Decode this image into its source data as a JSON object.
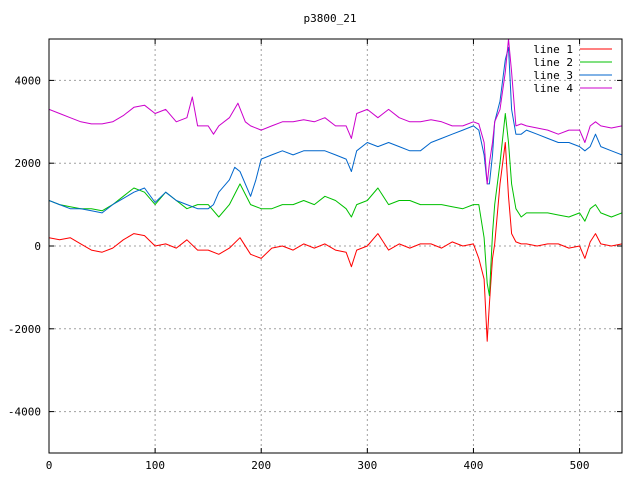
{
  "chart_data": {
    "type": "line",
    "title": "p3800_21",
    "xlabel": "",
    "ylabel": "",
    "xlim": [
      0,
      540
    ],
    "ylim": [
      -5000,
      5000
    ],
    "xticks": [
      0,
      100,
      200,
      300,
      400,
      500
    ],
    "yticks": [
      -4000,
      -2000,
      0,
      2000,
      4000
    ],
    "grid": true,
    "legend_position": "top-right",
    "series": [
      {
        "name": "line 1",
        "color": "#ff0000",
        "x": [
          0,
          10,
          20,
          30,
          40,
          50,
          60,
          70,
          80,
          90,
          100,
          110,
          120,
          130,
          140,
          150,
          160,
          170,
          180,
          190,
          200,
          210,
          220,
          230,
          240,
          250,
          260,
          270,
          280,
          285,
          290,
          300,
          310,
          320,
          330,
          340,
          350,
          360,
          370,
          380,
          390,
          400,
          405,
          410,
          413,
          415,
          418,
          420,
          425,
          430,
          433,
          436,
          440,
          445,
          450,
          460,
          470,
          480,
          490,
          500,
          505,
          510,
          515,
          520,
          530,
          540
        ],
        "y": [
          200,
          150,
          200,
          50,
          -100,
          -150,
          -50,
          150,
          300,
          250,
          0,
          50,
          -50,
          150,
          -100,
          -100,
          -200,
          -50,
          200,
          -200,
          -300,
          -50,
          0,
          -100,
          50,
          -50,
          50,
          -100,
          -150,
          -500,
          -100,
          0,
          300,
          -100,
          50,
          -50,
          50,
          50,
          -50,
          100,
          0,
          50,
          -300,
          -800,
          -2300,
          -1400,
          -300,
          50,
          1500,
          2500,
          1200,
          300,
          100,
          50,
          50,
          0,
          50,
          50,
          -50,
          0,
          -300,
          100,
          300,
          50,
          0,
          50
        ]
      },
      {
        "name": "line 2",
        "color": "#00c000",
        "x": [
          0,
          10,
          20,
          30,
          40,
          50,
          60,
          70,
          80,
          90,
          100,
          110,
          120,
          130,
          140,
          150,
          160,
          170,
          180,
          190,
          200,
          210,
          220,
          230,
          240,
          250,
          260,
          270,
          280,
          285,
          290,
          300,
          310,
          320,
          330,
          340,
          350,
          360,
          370,
          380,
          390,
          400,
          405,
          410,
          413,
          415,
          418,
          420,
          425,
          430,
          433,
          436,
          440,
          445,
          450,
          460,
          470,
          480,
          490,
          500,
          505,
          510,
          515,
          520,
          530,
          540
        ],
        "y": [
          1100,
          1000,
          950,
          900,
          900,
          850,
          1000,
          1200,
          1400,
          1300,
          1000,
          1300,
          1100,
          900,
          1000,
          1000,
          700,
          1000,
          1500,
          1000,
          900,
          900,
          1000,
          1000,
          1100,
          1000,
          1200,
          1100,
          900,
          700,
          1000,
          1100,
          1400,
          1000,
          1100,
          1100,
          1000,
          1000,
          1000,
          950,
          900,
          1000,
          1000,
          200,
          -900,
          -1200,
          300,
          1000,
          2000,
          3200,
          2500,
          1500,
          900,
          700,
          800,
          800,
          800,
          750,
          700,
          800,
          600,
          900,
          1000,
          800,
          700,
          800
        ]
      },
      {
        "name": "line 3",
        "color": "#0066cc",
        "x": [
          0,
          10,
          20,
          30,
          40,
          50,
          60,
          70,
          80,
          90,
          100,
          110,
          120,
          130,
          140,
          150,
          155,
          160,
          170,
          175,
          180,
          190,
          195,
          200,
          210,
          220,
          230,
          240,
          250,
          260,
          270,
          280,
          285,
          290,
          300,
          310,
          320,
          330,
          340,
          350,
          360,
          370,
          380,
          390,
          400,
          405,
          410,
          413,
          415,
          418,
          420,
          425,
          430,
          433,
          436,
          440,
          445,
          450,
          460,
          470,
          480,
          490,
          500,
          505,
          510,
          515,
          520,
          530,
          540
        ],
        "y": [
          1100,
          1000,
          900,
          900,
          850,
          800,
          1000,
          1150,
          1300,
          1400,
          1050,
          1300,
          1100,
          1000,
          900,
          900,
          1000,
          1300,
          1600,
          1900,
          1800,
          1200,
          1600,
          2100,
          2200,
          2300,
          2200,
          2300,
          2300,
          2300,
          2200,
          2100,
          1800,
          2300,
          2500,
          2400,
          2500,
          2400,
          2300,
          2300,
          2500,
          2600,
          2700,
          2800,
          2900,
          2800,
          2200,
          1500,
          1500,
          2200,
          3000,
          3500,
          4500,
          4800,
          3300,
          2700,
          2700,
          2800,
          2700,
          2600,
          2500,
          2500,
          2400,
          2300,
          2400,
          2700,
          2400,
          2300,
          2200
        ]
      },
      {
        "name": "line 4",
        "color": "#cc00cc",
        "x": [
          0,
          10,
          20,
          30,
          40,
          50,
          60,
          70,
          80,
          90,
          100,
          110,
          120,
          130,
          135,
          140,
          150,
          155,
          160,
          170,
          178,
          185,
          190,
          200,
          210,
          220,
          230,
          240,
          250,
          260,
          270,
          280,
          285,
          290,
          300,
          310,
          320,
          330,
          340,
          350,
          360,
          370,
          380,
          390,
          400,
          405,
          410,
          413,
          415,
          418,
          420,
          425,
          430,
          433,
          436,
          440,
          445,
          450,
          460,
          470,
          480,
          490,
          500,
          505,
          510,
          515,
          520,
          530,
          540
        ],
        "y": [
          3300,
          3200,
          3100,
          3000,
          2950,
          2950,
          3000,
          3150,
          3350,
          3400,
          3200,
          3300,
          3000,
          3100,
          3600,
          2900,
          2900,
          2700,
          2900,
          3100,
          3450,
          3000,
          2900,
          2800,
          2900,
          3000,
          3000,
          3050,
          3000,
          3100,
          2900,
          2900,
          2600,
          3200,
          3300,
          3100,
          3300,
          3100,
          3000,
          3000,
          3050,
          3000,
          2900,
          2900,
          3000,
          2950,
          2500,
          1500,
          2000,
          2500,
          3000,
          3300,
          4200,
          5000,
          4200,
          2900,
          2950,
          2900,
          2850,
          2800,
          2700,
          2800,
          2800,
          2500,
          2900,
          3000,
          2900,
          2850,
          2900
        ]
      }
    ]
  }
}
